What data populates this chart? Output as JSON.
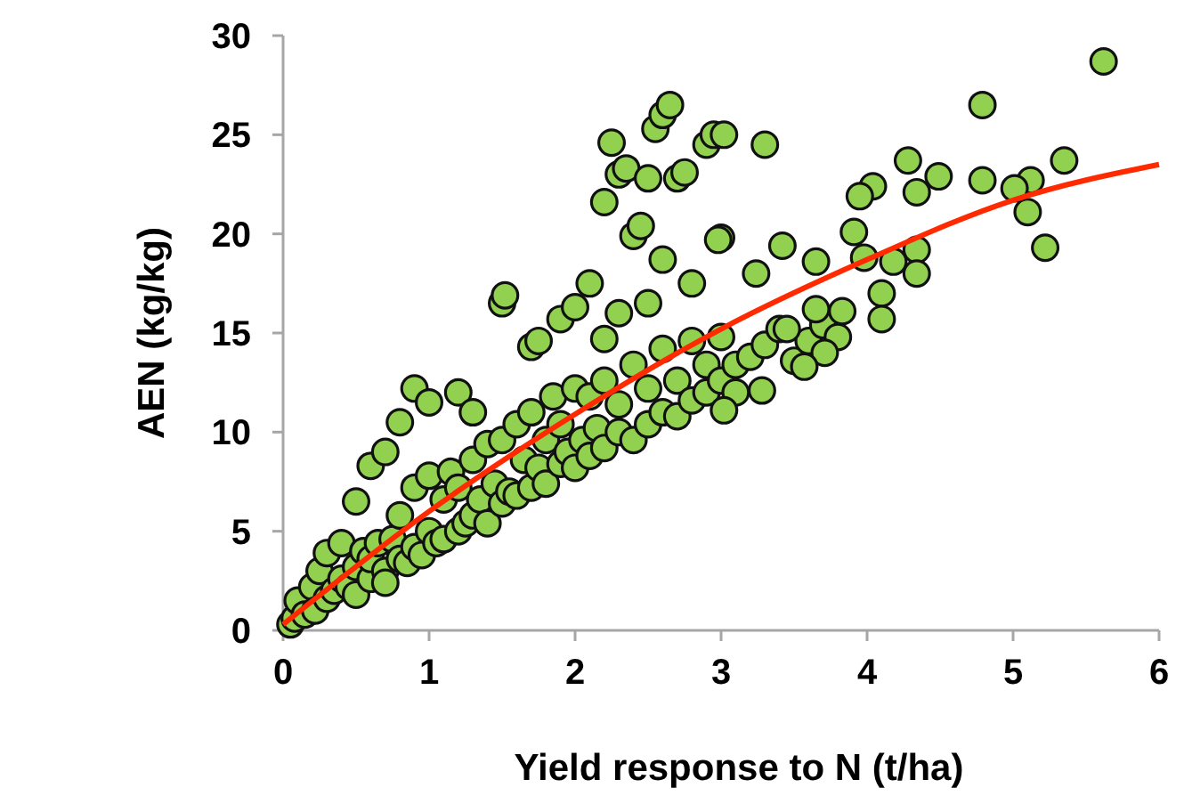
{
  "chart_data": {
    "type": "scatter",
    "xlabel": "Yield response to N (t/ha)",
    "ylabel": "AEN (kg/kg)",
    "xlim": [
      0,
      6
    ],
    "ylim": [
      0,
      30
    ],
    "xticks": [
      0,
      1,
      2,
      3,
      4,
      5,
      6
    ],
    "yticks": [
      0,
      5,
      10,
      15,
      20,
      25,
      30
    ],
    "grid": false,
    "series": [
      {
        "color": "#92d050",
        "marker": "circle",
        "x": [
          0.05,
          0.08,
          0.1,
          0.15,
          0.2,
          0.22,
          0.25,
          0.3,
          0.3,
          0.35,
          0.4,
          0.4,
          0.45,
          0.5,
          0.5,
          0.55,
          0.6,
          0.6,
          0.65,
          0.7,
          0.7,
          0.75,
          0.8,
          0.8,
          0.85,
          0.9,
          0.9,
          0.95,
          1.0,
          1.0,
          1.05,
          1.1,
          1.1,
          1.15,
          1.2,
          1.2,
          1.25,
          1.3,
          1.3,
          1.35,
          1.4,
          1.4,
          1.45,
          1.5,
          1.5,
          1.55,
          1.6,
          1.6,
          1.65,
          1.7,
          1.7,
          1.75,
          1.8,
          1.8,
          1.85,
          1.9,
          1.9,
          1.95,
          2.0,
          2.0,
          2.05,
          2.1,
          2.1,
          2.15,
          2.2,
          2.2,
          2.3,
          2.3,
          2.4,
          2.4,
          2.5,
          2.5,
          2.6,
          2.6,
          2.7,
          2.7,
          2.8,
          2.8,
          2.9,
          2.9,
          3.0,
          3.0,
          3.1,
          3.1,
          3.2,
          3.3,
          3.4,
          3.5,
          3.6,
          3.7,
          3.8,
          0.5,
          0.6,
          0.7,
          0.8,
          0.9,
          1.0,
          1.2,
          1.3,
          1.5,
          1.52,
          1.7,
          1.75,
          1.9,
          2.0,
          2.1,
          2.2,
          2.25,
          2.3,
          2.35,
          2.4,
          2.45,
          2.5,
          2.55,
          2.6,
          2.65,
          2.7,
          2.75,
          2.8,
          2.9,
          2.95,
          3.0,
          2.2,
          2.3,
          2.5,
          2.6,
          3.3,
          3.02,
          4.28,
          4.49,
          4.79,
          4.79,
          5.62,
          5.35,
          5.12,
          5.01,
          5.1,
          5.22,
          4.04,
          3.95,
          4.34,
          3.91,
          3.98,
          4.34,
          4.34,
          4.1,
          4.1,
          4.18,
          3.42,
          3.65,
          3.24,
          2.98,
          3.71,
          3.57,
          3.28,
          3.02,
          3.83,
          3.45,
          3.65
        ],
        "values": [
          0.3,
          0.6,
          1.5,
          0.8,
          2.2,
          1.0,
          3.0,
          1.6,
          3.9,
          2.0,
          2.6,
          4.4,
          2.2,
          3.2,
          1.8,
          4.0,
          2.6,
          3.6,
          4.4,
          3.0,
          2.4,
          4.6,
          3.6,
          5.8,
          3.4,
          4.2,
          7.2,
          3.8,
          5.0,
          7.8,
          4.4,
          6.6,
          4.6,
          8.0,
          5.0,
          7.2,
          5.4,
          8.6,
          5.8,
          6.6,
          9.4,
          5.4,
          7.4,
          9.6,
          6.4,
          7.0,
          10.4,
          6.8,
          8.6,
          7.2,
          11.0,
          8.2,
          9.6,
          7.4,
          11.8,
          8.4,
          10.4,
          9.0,
          8.2,
          12.2,
          9.6,
          8.8,
          11.8,
          10.2,
          9.2,
          12.6,
          10.0,
          11.4,
          9.6,
          13.4,
          10.4,
          12.2,
          11.0,
          14.2,
          10.8,
          12.6,
          11.6,
          14.6,
          12.0,
          13.4,
          12.6,
          14.8,
          13.4,
          12.0,
          13.8,
          14.4,
          15.2,
          13.6,
          14.6,
          15.4,
          14.8,
          6.5,
          8.3,
          9.0,
          10.5,
          12.2,
          11.5,
          12.0,
          11.0,
          16.5,
          16.9,
          14.3,
          14.6,
          15.7,
          16.3,
          17.5,
          21.6,
          24.6,
          23.0,
          23.3,
          19.9,
          20.4,
          22.8,
          25.3,
          26.0,
          26.5,
          22.8,
          23.1,
          17.5,
          24.5,
          25.0,
          19.8,
          14.7,
          16.0,
          16.5,
          18.7,
          24.5,
          25.0,
          23.7,
          22.9,
          22.7,
          26.5,
          28.7,
          23.7,
          22.7,
          22.3,
          21.1,
          19.3,
          22.4,
          21.9,
          22.1,
          20.1,
          18.8,
          19.2,
          18.0,
          17.0,
          15.7,
          18.6,
          19.4,
          18.6,
          18.0,
          19.7,
          14.0,
          13.3,
          12.1,
          11.1,
          16.1,
          15.2,
          16.2
        ]
      },
      {
        "type": "line",
        "color": "#ff2a00",
        "marker": "none",
        "x": [
          0,
          1,
          2,
          3,
          4,
          5,
          6
        ],
        "values": [
          0.3,
          6.0,
          10.9,
          15.2,
          18.7,
          21.7,
          23.5
        ]
      }
    ]
  }
}
